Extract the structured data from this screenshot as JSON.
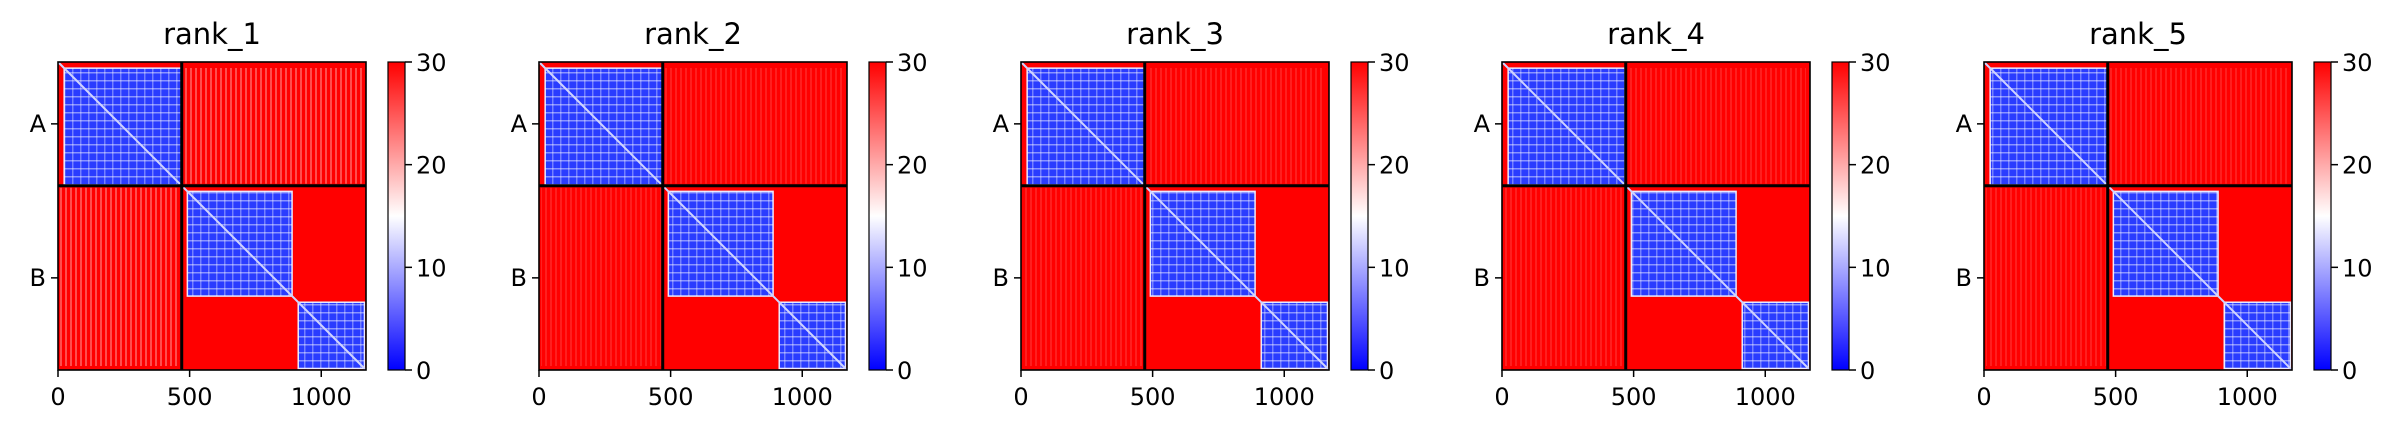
{
  "chart_data": [
    {
      "type": "heatmap",
      "title": "rank_1",
      "chains": [
        "A",
        "B"
      ],
      "xticks": [
        0,
        500,
        1000
      ],
      "xlim": [
        0,
        1170
      ],
      "colorbar": {
        "min": 0,
        "max": 30,
        "ticks": [
          0,
          10,
          20,
          30
        ],
        "colors": [
          "#0000ff",
          "#ffffff",
          "#ff0000"
        ]
      },
      "variant": "light"
    },
    {
      "type": "heatmap",
      "title": "rank_2",
      "chains": [
        "A",
        "B"
      ],
      "xticks": [
        0,
        500,
        1000
      ],
      "xlim": [
        0,
        1170
      ],
      "colorbar": {
        "min": 0,
        "max": 30,
        "ticks": [
          0,
          10,
          20,
          30
        ],
        "colors": [
          "#0000ff",
          "#ffffff",
          "#ff0000"
        ]
      },
      "variant": "dark"
    },
    {
      "type": "heatmap",
      "title": "rank_3",
      "chains": [
        "A",
        "B"
      ],
      "xticks": [
        0,
        500,
        1000
      ],
      "xlim": [
        0,
        1170
      ],
      "colorbar": {
        "min": 0,
        "max": 30,
        "ticks": [
          0,
          10,
          20,
          30
        ],
        "colors": [
          "#0000ff",
          "#ffffff",
          "#ff0000"
        ]
      },
      "variant": "dark"
    },
    {
      "type": "heatmap",
      "title": "rank_4",
      "chains": [
        "A",
        "B"
      ],
      "xticks": [
        0,
        500,
        1000
      ],
      "xlim": [
        0,
        1170
      ],
      "colorbar": {
        "min": 0,
        "max": 30,
        "ticks": [
          0,
          10,
          20,
          30
        ],
        "colors": [
          "#0000ff",
          "#ffffff",
          "#ff0000"
        ]
      },
      "variant": "dark"
    },
    {
      "type": "heatmap",
      "title": "rank_5",
      "chains": [
        "A",
        "B"
      ],
      "xticks": [
        0,
        500,
        1000
      ],
      "xlim": [
        0,
        1170
      ],
      "colorbar": {
        "min": 0,
        "max": 30,
        "ticks": [
          0,
          10,
          20,
          30
        ],
        "colors": [
          "#0000ff",
          "#ffffff",
          "#ff0000"
        ]
      },
      "variant": "dark"
    }
  ]
}
